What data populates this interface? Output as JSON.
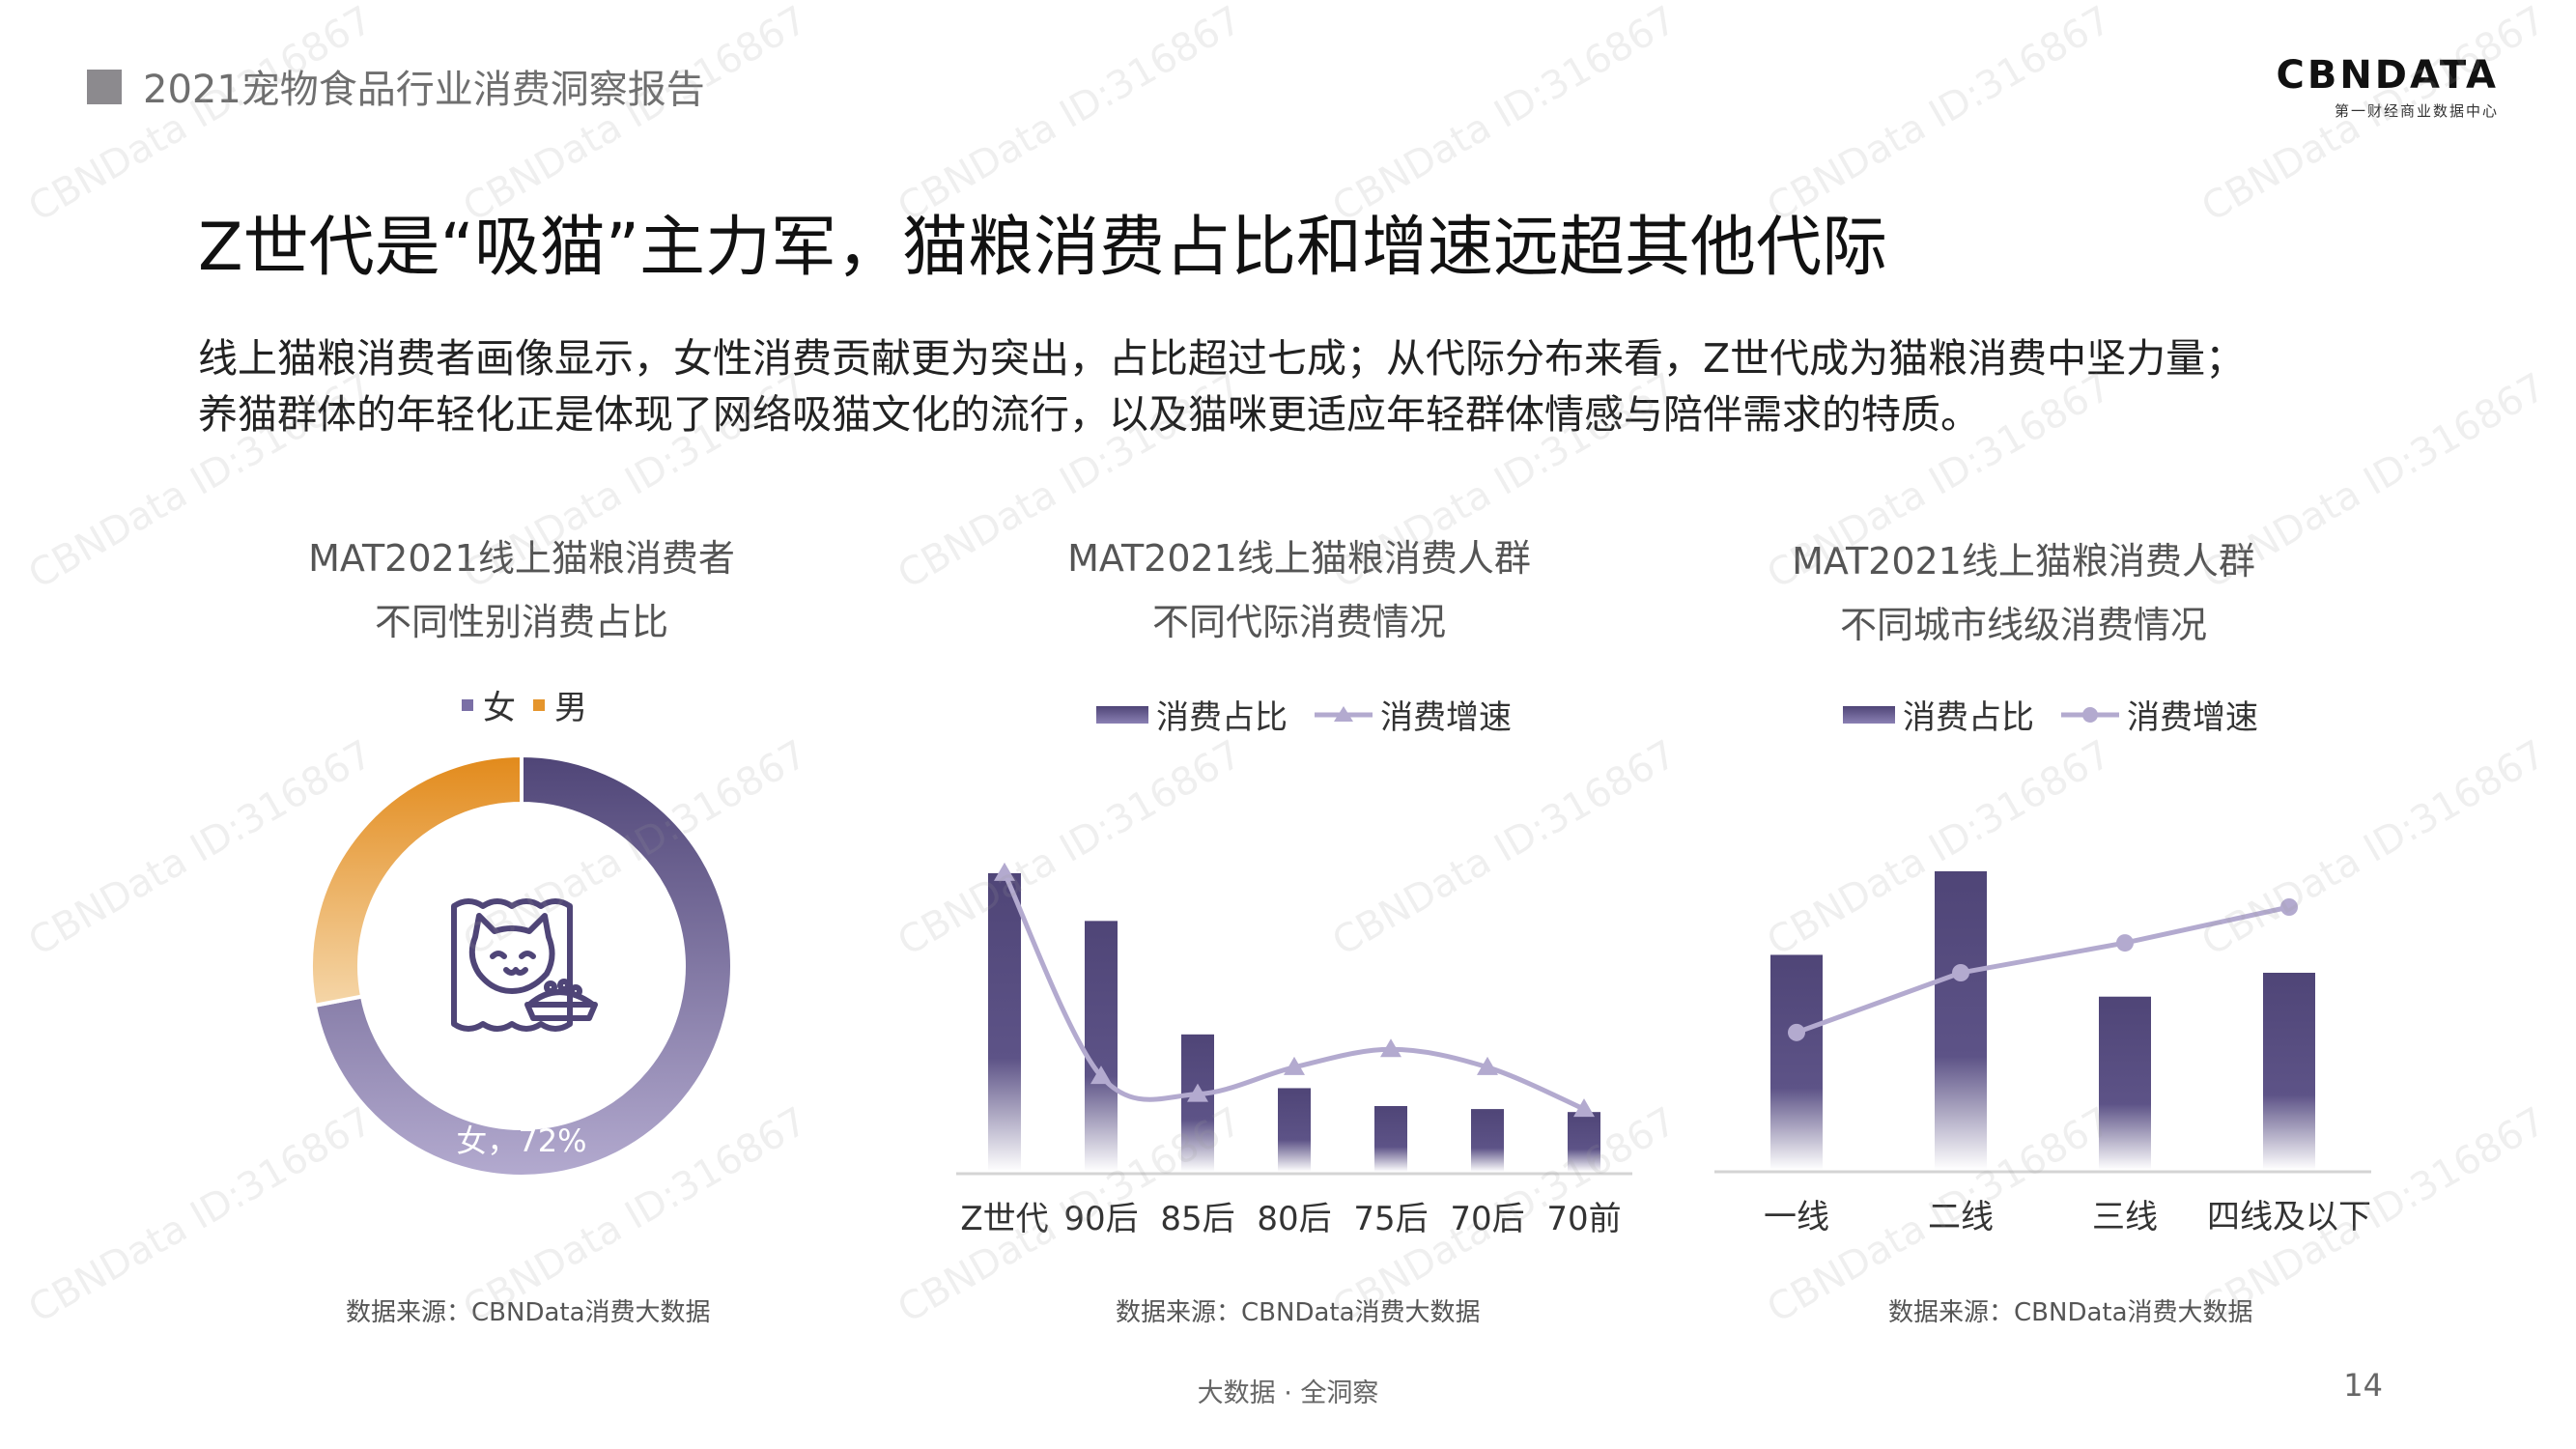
{
  "header": {
    "title": "2021宠物食品行业消费洞察报告"
  },
  "logo": {
    "main": "CBNDATA",
    "sub": "第一财经商业数据中心"
  },
  "main_title": "Z世代是“吸猫”主力军，猫粮消费占比和增速远超其他代际",
  "description": [
    "线上猫粮消费者画像显示，女性消费贡献更为突出，占比超过七成；从代际分布来看，Z世代成为猫粮消费中坚力量；",
    "养猫群体的年轻化正是体现了网络吸猫文化的流行，以及猫咪更适应年轻群体情感与陪伴需求的特质。"
  ],
  "watermark": "CBNData ID:316867",
  "footer": {
    "tagline": "大数据 · 全洞察",
    "page": "14"
  },
  "colors": {
    "dark_purple": "#4f4577",
    "light_purple": "#b3aacf",
    "orange": "#e5952c",
    "header_gray": "#8c8a8e"
  },
  "chart_data": [
    {
      "type": "pie",
      "title_lines": [
        "MAT2021线上猫粮消费者",
        "不同性别消费占比"
      ],
      "legend": [
        "女",
        "男"
      ],
      "slices": [
        {
          "name": "女",
          "value": 72
        },
        {
          "name": "男",
          "value": 28
        }
      ],
      "center_icon": "cat-food-bag-icon",
      "data_label": "女，72%",
      "source": "数据来源：CBNData消费大数据"
    },
    {
      "type": "bar",
      "title_lines": [
        "MAT2021线上猫粮消费人群",
        "不同代际消费情况"
      ],
      "categories": [
        "Z世代",
        "90后",
        "85后",
        "80后",
        "75后",
        "70后",
        "70前"
      ],
      "series": [
        {
          "name": "消费占比",
          "type": "bar",
          "values": [
            100,
            84,
            46,
            28,
            22,
            21,
            20
          ]
        },
        {
          "name": "消费增速",
          "type": "line",
          "marker": "triangle",
          "values": [
            100,
            32,
            26,
            35,
            41,
            35,
            21
          ]
        }
      ],
      "ylim": [
        0,
        110
      ],
      "source": "数据来源：CBNData消费大数据"
    },
    {
      "type": "bar",
      "title_lines": [
        "MAT2021线上猫粮消费人群",
        "不同城市线级消费情况"
      ],
      "categories": [
        "一线",
        "二线",
        "三线",
        "四线及以下"
      ],
      "series": [
        {
          "name": "消费占比",
          "type": "bar",
          "values": [
            72,
            100,
            58,
            66
          ]
        },
        {
          "name": "消费增速",
          "type": "line",
          "marker": "circle",
          "values": [
            46,
            66,
            76,
            88
          ]
        }
      ],
      "ylim": [
        0,
        110
      ],
      "source": "数据来源：CBNData消费大数据"
    }
  ]
}
